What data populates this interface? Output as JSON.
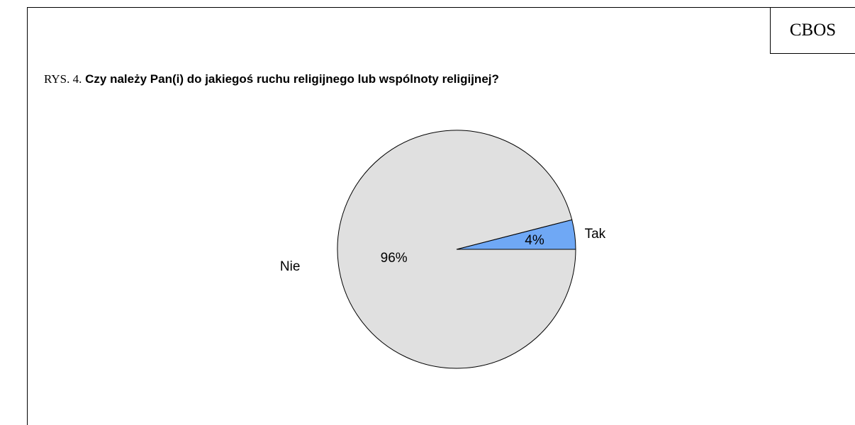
{
  "brand": "CBOS",
  "figure": {
    "prefix": "RYS. 4.",
    "question": "Czy należy Pan(i) do jakiegoś ruchu religijnego lub wspólnoty religijnej?"
  },
  "chart_data": {
    "type": "pie",
    "title": "Czy należy Pan(i) do jakiegoś ruchu religijnego lub wspólnoty religijnej?",
    "slices": [
      {
        "label": "Tak",
        "value": 4,
        "value_label": "4%",
        "color": "#6fa8f5"
      },
      {
        "label": "Nie",
        "value": 96,
        "value_label": "96%",
        "color": "#e0e0e0"
      }
    ],
    "legend": "none",
    "labels_outside": true
  }
}
